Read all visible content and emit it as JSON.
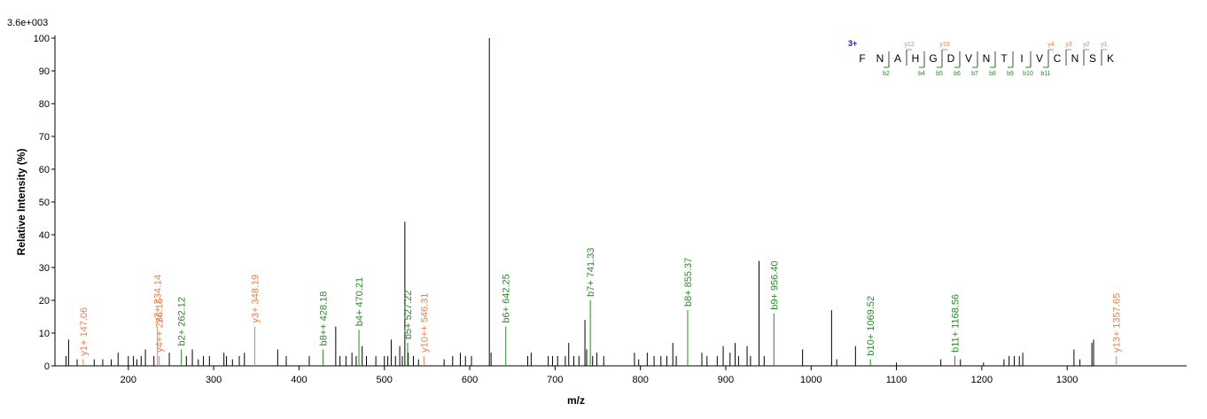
{
  "chart_data": {
    "type": "spectrum",
    "scale_label": "3.6e+003",
    "x_label": "m/z",
    "y_label": "Relative Intensity (%)",
    "xlim": [
      114,
      1440
    ],
    "ylim": [
      0,
      100
    ],
    "xticks": [
      200,
      300,
      400,
      500,
      600,
      700,
      800,
      900,
      1000,
      1100,
      1200,
      1300
    ],
    "yticks": [
      0,
      10,
      20,
      30,
      40,
      50,
      60,
      70,
      80,
      90,
      100
    ],
    "peaks": {
      "color": "#000000",
      "x": [
        127,
        130,
        140,
        160,
        170,
        180,
        188,
        200,
        206,
        210,
        215,
        220,
        230,
        248,
        268,
        275,
        282,
        288,
        295,
        312,
        315,
        322,
        330,
        336,
        375,
        385,
        412,
        443,
        448,
        455,
        462,
        467,
        474,
        479,
        490,
        500,
        504,
        508,
        513,
        518,
        521,
        524,
        528,
        534,
        540,
        570,
        580,
        589,
        595,
        602,
        623,
        625,
        668,
        672,
        692,
        697,
        703,
        712,
        716,
        722,
        728,
        735,
        737,
        744,
        749,
        757,
        793,
        798,
        808,
        816,
        824,
        831,
        838,
        842,
        872,
        878,
        890,
        897,
        905,
        911,
        915,
        925,
        929,
        939,
        945,
        990,
        1024,
        1030,
        1052,
        1100,
        1152,
        1175,
        1202,
        1226,
        1232,
        1238,
        1244,
        1248,
        1308,
        1315,
        1329,
        1331
      ],
      "values": [
        3,
        8,
        2,
        2,
        2,
        2,
        4,
        3,
        3,
        2,
        3,
        5,
        3,
        4,
        3,
        5,
        2,
        3,
        3,
        4,
        3,
        2,
        3,
        4,
        5,
        3,
        3,
        12,
        3,
        3,
        4,
        3,
        6,
        3,
        3,
        3,
        3,
        8,
        3,
        6,
        3,
        44,
        4,
        3,
        2,
        2,
        3,
        4,
        3,
        3,
        100,
        4,
        3,
        4,
        3,
        3,
        3,
        3,
        7,
        3,
        3,
        14,
        5,
        3,
        4,
        3,
        4,
        2,
        4,
        3,
        3,
        3,
        7,
        3,
        4,
        3,
        3,
        6,
        4,
        7,
        3,
        6,
        3,
        32,
        3,
        5,
        17,
        2,
        6,
        1,
        2,
        2,
        1,
        2,
        3,
        3,
        3,
        4,
        5,
        2,
        7,
        8
      ]
    },
    "annotated_peaks": [
      {
        "label": "y1+ 147.06",
        "x": 147.06,
        "value": 2,
        "color": "#e8804a"
      },
      {
        "label": "y4++ 236.15",
        "x": 236.15,
        "value": 3,
        "color": "#e8804a"
      },
      {
        "label": "y2+ 234.14",
        "x": 234.14,
        "value": 12,
        "color": "#e8804a"
      },
      {
        "label": "b2+ 262.12",
        "x": 262.12,
        "value": 5,
        "color": "#2a8a2a"
      },
      {
        "label": "y3+ 348.19",
        "x": 348.19,
        "value": 12,
        "color": "#e8804a"
      },
      {
        "label": "b8++ 428.18",
        "x": 428.18,
        "value": 5,
        "color": "#2a8a2a"
      },
      {
        "label": "b4+ 470.21",
        "x": 470.21,
        "value": 11,
        "color": "#2a8a2a"
      },
      {
        "label": "b5+ 527.22",
        "x": 527.22,
        "value": 7,
        "color": "#2a8a2a"
      },
      {
        "label": "y10++ 546.31",
        "x": 546.31,
        "value": 3,
        "color": "#e8804a"
      },
      {
        "label": "b6+ 642.25",
        "x": 642.25,
        "value": 12,
        "color": "#2a8a2a"
      },
      {
        "label": "b7+ 741.33",
        "x": 741.33,
        "value": 20,
        "color": "#2a8a2a"
      },
      {
        "label": "b8+ 855.37",
        "x": 855.37,
        "value": 17,
        "color": "#2a8a2a"
      },
      {
        "label": "b9+ 956.40",
        "x": 956.4,
        "value": 16,
        "color": "#2a8a2a"
      },
      {
        "label": "b10+ 1069.52",
        "x": 1069.52,
        "value": 2,
        "color": "#2a8a2a"
      },
      {
        "label": "b11+ 1168.56",
        "x": 1168.56,
        "value": 3,
        "color": "#2a8a2a"
      },
      {
        "label": "y13+ 1357.65",
        "x": 1357.65,
        "value": 3,
        "color": "#e8804a"
      }
    ],
    "sequence": {
      "charge": "3+",
      "residues": [
        "F",
        "N",
        "A",
        "H",
        "G",
        "D",
        "V",
        "N",
        "T",
        "I",
        "V",
        "C",
        "N",
        "S",
        "K"
      ],
      "y_ions": [
        "y12",
        "y10",
        "y4",
        "y3",
        "y2",
        "y1"
      ],
      "b_ions": [
        "b2",
        "b4",
        "b5",
        "b6",
        "b7",
        "b8",
        "b9",
        "b10",
        "b11"
      ]
    }
  }
}
